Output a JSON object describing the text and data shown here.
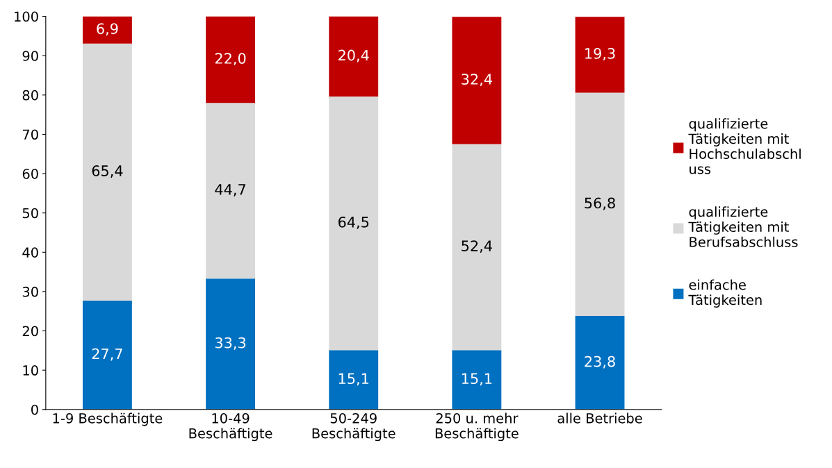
{
  "chart_data": {
    "type": "bar",
    "stacked": true,
    "categories": [
      "1-9 Beschäftigte",
      "10-49 Beschäftigte",
      "50-249 Beschäftigte",
      "250 u. mehr Beschäftigte",
      "alle Betriebe"
    ],
    "series": [
      {
        "name": "einfache Tätigkeiten",
        "color": "#0070c0",
        "values": [
          27.7,
          33.3,
          15.1,
          15.1,
          23.8
        ],
        "value_labels": [
          "27,7",
          "33,3",
          "15,1",
          "15,1",
          "23,8"
        ]
      },
      {
        "name": "qualifizierte Tätigkeiten mit Berufsabschluss",
        "color": "#d9d9d9",
        "values": [
          65.4,
          44.7,
          64.5,
          52.4,
          56.8
        ],
        "value_labels": [
          "65,4",
          "44,7",
          "64,5",
          "52,4",
          "56,8"
        ]
      },
      {
        "name": "qualifizierte Tätigkeiten mit Hochschulabschluss",
        "color": "#c00000",
        "values": [
          6.9,
          22.0,
          20.4,
          32.4,
          19.3
        ],
        "value_labels": [
          "6,9",
          "22,0",
          "20,4",
          "32,4",
          "19,3"
        ]
      }
    ],
    "ylim": [
      0,
      100
    ],
    "yticks": [
      0,
      10,
      20,
      30,
      40,
      50,
      60,
      70,
      80,
      90,
      100
    ],
    "grid": false,
    "legend": "right"
  }
}
